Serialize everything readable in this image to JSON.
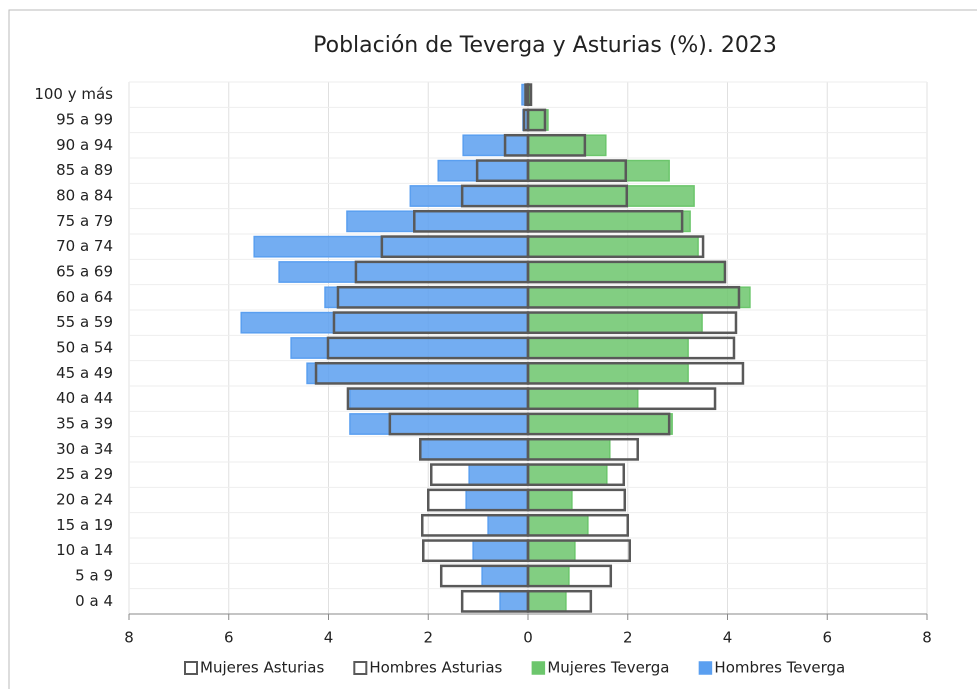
{
  "chart_data": {
    "type": "pyramid",
    "title": "Población de Teverga y Asturias (%). 2023",
    "categories": [
      "100 y más",
      "95 a 99",
      "90 a 94",
      "85 a 89",
      "80 a 84",
      "75 a 79",
      "70 a 74",
      "65 a 69",
      "60 a 64",
      "55 a 59",
      "50 a 54",
      "45 a 49",
      "40 a 44",
      "35 a 39",
      "30 a 34",
      "25 a 29",
      "20 a 24",
      "15 a 19",
      "10 a 14",
      "5 a 9",
      "0 a 4"
    ],
    "series": [
      {
        "name": "Mujeres Asturias",
        "color": "#595959",
        "style": "outline",
        "values": [
          0.06,
          0.34,
          1.14,
          1.96,
          1.98,
          3.09,
          3.51,
          3.95,
          4.23,
          4.17,
          4.13,
          4.31,
          3.75,
          2.83,
          2.2,
          1.92,
          1.94,
          2.0,
          2.04,
          1.66,
          1.26
        ]
      },
      {
        "name": "Hombres Asturias",
        "color": "#595959",
        "style": "outline",
        "values": [
          -0.05,
          -0.08,
          -0.46,
          -1.02,
          -1.32,
          -2.28,
          -2.93,
          -3.45,
          -3.81,
          -3.89,
          -4.01,
          -4.25,
          -3.61,
          -2.77,
          -2.16,
          -1.94,
          -2.0,
          -2.12,
          -2.1,
          -1.74,
          -1.32
        ]
      },
      {
        "name": "Mujeres Teverga",
        "color": "#6cc66c",
        "style": "filled",
        "values": [
          0.04,
          0.4,
          1.56,
          2.83,
          3.33,
          3.25,
          3.41,
          3.93,
          4.45,
          3.49,
          3.21,
          3.21,
          2.2,
          2.89,
          1.64,
          1.58,
          0.88,
          1.2,
          0.94,
          0.82,
          0.76
        ]
      },
      {
        "name": "Hombres Teverga",
        "color": "#5a9ff0",
        "style": "filled",
        "values": [
          -0.12,
          -0.1,
          -1.3,
          -1.8,
          -2.36,
          -3.63,
          -5.49,
          -4.99,
          -4.07,
          -5.75,
          -4.75,
          -4.43,
          -3.57,
          -3.57,
          -2.16,
          -1.18,
          -1.24,
          -0.8,
          -1.1,
          -0.92,
          -0.56
        ]
      }
    ],
    "xlim": [
      -8,
      8
    ],
    "xticks": [
      {
        "value": -8,
        "label": "8"
      },
      {
        "value": -6,
        "label": "6"
      },
      {
        "value": -4,
        "label": "4"
      },
      {
        "value": -2,
        "label": "2"
      },
      0,
      2,
      4,
      6,
      8
    ],
    "grid": true,
    "legend": "bottom"
  }
}
